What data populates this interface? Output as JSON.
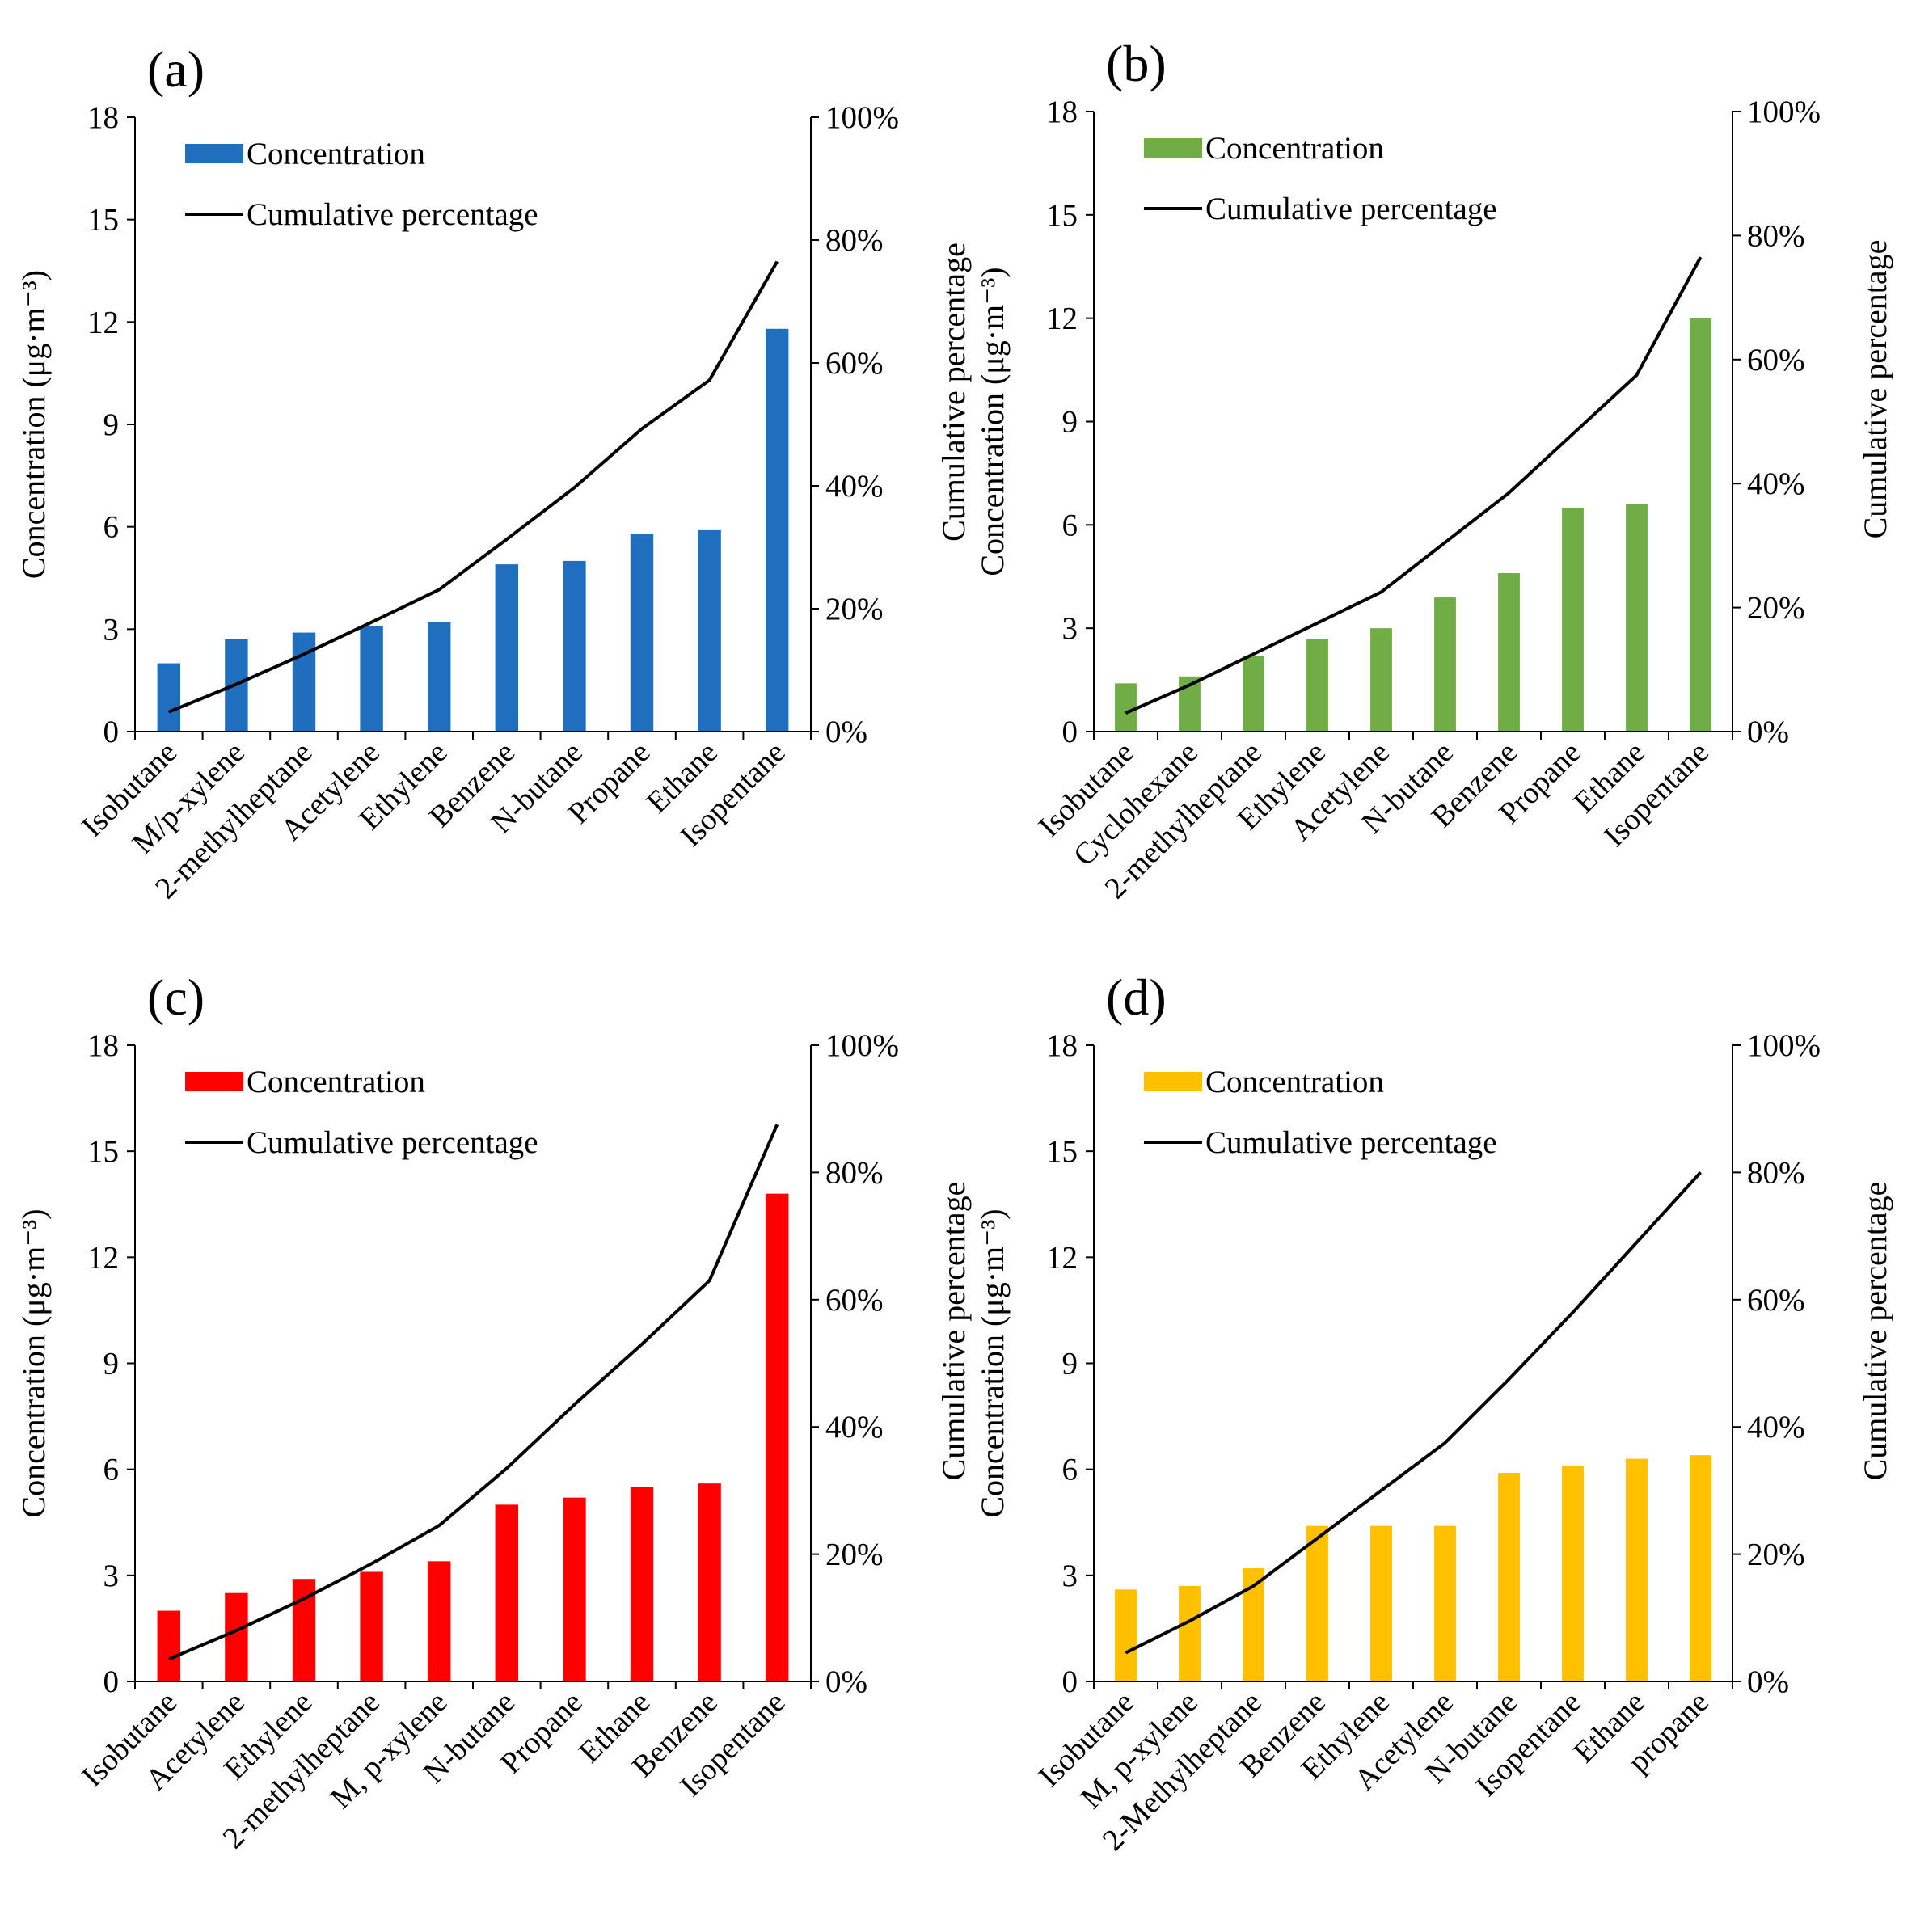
{
  "figure": {
    "charts_count": 4
  },
  "chart_data": [
    {
      "type": "bar",
      "panel_label": "(a)",
      "bar_color": "#1F6FBE",
      "categories": [
        "Isobutane",
        "M/p-xylene",
        "2-methylheptane",
        "Acetylene",
        "Ethylene",
        "Benzene",
        "N-butane",
        "Propane",
        "Ethane",
        "Isopentane"
      ],
      "series": [
        {
          "name": "Concentration",
          "axis": "left",
          "kind": "bar",
          "values": [
            2.0,
            2.7,
            2.9,
            3.1,
            3.2,
            4.9,
            5.0,
            5.8,
            5.9,
            11.8
          ]
        },
        {
          "name": "Cumulative percentage",
          "axis": "right",
          "kind": "line",
          "values": [
            3.2,
            7.7,
            12.6,
            17.8,
            23.1,
            31.3,
            39.7,
            49.3,
            57.2,
            76.5
          ]
        }
      ],
      "ylabel": "Concentration (μg·m⁻³)",
      "y2label": "Cumulative percentage",
      "ylim": [
        0,
        18
      ],
      "yticks": [
        "0",
        "3",
        "6",
        "9",
        "12",
        "15",
        "18"
      ],
      "y2lim": [
        0,
        100
      ],
      "y2ticks": [
        "0%",
        "20%",
        "40%",
        "60%",
        "80%",
        "100%"
      ],
      "legend": [
        "Concentration",
        "Cumulative percentage"
      ],
      "legend_position": "top-left",
      "grid": false
    },
    {
      "type": "bar",
      "panel_label": "(b)",
      "bar_color": "#70AD47",
      "categories": [
        "Isobutane",
        "Cyclohexane",
        "2-methylheptane",
        "Ethylene",
        "Acetylene",
        "N-butane",
        "Benzene",
        "Propane",
        "Ethane",
        "Isopentane"
      ],
      "series": [
        {
          "name": "Concentration",
          "axis": "left",
          "kind": "bar",
          "values": [
            1.4,
            1.6,
            2.2,
            2.7,
            3.0,
            3.9,
            4.6,
            6.5,
            6.6,
            12.0
          ]
        },
        {
          "name": "Cumulative percentage",
          "axis": "right",
          "kind": "line",
          "values": [
            3.0,
            7.5,
            12.5,
            17.5,
            22.5,
            30.5,
            38.5,
            48.0,
            57.5,
            76.5
          ]
        }
      ],
      "ylabel": "Concentration (μg·m⁻³)",
      "y2label": "Cumulative percentage",
      "ylim": [
        0,
        18
      ],
      "yticks": [
        "0",
        "3",
        "6",
        "9",
        "12",
        "15",
        "18"
      ],
      "y2lim": [
        0,
        100
      ],
      "y2ticks": [
        "0%",
        "20%",
        "40%",
        "60%",
        "80%",
        "100%"
      ],
      "legend": [
        "Concentration",
        "Cumulative percentage"
      ],
      "legend_position": "top-left",
      "grid": false
    },
    {
      "type": "bar",
      "panel_label": "(c)",
      "bar_color": "#FF0000",
      "categories": [
        "Isobutane",
        "Acetylene",
        "Ethylene",
        "2-methylheptane",
        "M, p-xylene",
        "N-butane",
        "Propane",
        "Ethane",
        "Benzene",
        "Isopentane"
      ],
      "series": [
        {
          "name": "Concentration",
          "axis": "left",
          "kind": "bar",
          "values": [
            2.0,
            2.5,
            2.9,
            3.1,
            3.4,
            5.0,
            5.2,
            5.5,
            5.6,
            13.8
          ]
        },
        {
          "name": "Cumulative percentage",
          "axis": "right",
          "kind": "line",
          "values": [
            3.5,
            8.0,
            13.0,
            18.5,
            24.5,
            33.5,
            43.5,
            53.0,
            63.0,
            87.5
          ]
        }
      ],
      "ylabel": "Concentration (μg·m⁻³)",
      "y2label": "Cumulative percentage",
      "ylim": [
        0,
        18
      ],
      "yticks": [
        "0",
        "3",
        "6",
        "9",
        "12",
        "15",
        "18"
      ],
      "y2lim": [
        0,
        100
      ],
      "y2ticks": [
        "0%",
        "20%",
        "40%",
        "60%",
        "80%",
        "100%"
      ],
      "legend": [
        "Concentration",
        "Cumulative percentage"
      ],
      "legend_position": "top-left",
      "grid": false
    },
    {
      "type": "bar",
      "panel_label": "(d)",
      "bar_color": "#FFC000",
      "categories": [
        "Isobutane",
        "M, p-xylene",
        "2-Methylheptane",
        "Benzene",
        "Ethylene",
        "Acetylene",
        "N-butane",
        "Isopentane",
        "Ethane",
        "propane"
      ],
      "series": [
        {
          "name": "Concentration",
          "axis": "left",
          "kind": "bar",
          "values": [
            2.6,
            2.7,
            3.2,
            4.4,
            4.4,
            4.4,
            5.9,
            6.1,
            6.3,
            6.4
          ]
        },
        {
          "name": "Cumulative percentage",
          "axis": "right",
          "kind": "line",
          "values": [
            4.5,
            9.5,
            15.0,
            22.5,
            30.0,
            37.5,
            47.5,
            58.0,
            69.0,
            80.0
          ]
        }
      ],
      "ylabel": "Concentration (μg·m⁻³)",
      "y2label": "Cumulative percentage",
      "ylim": [
        0,
        18
      ],
      "yticks": [
        "0",
        "3",
        "6",
        "9",
        "12",
        "15",
        "18"
      ],
      "y2lim": [
        0,
        100
      ],
      "y2ticks": [
        "0%",
        "20%",
        "40%",
        "60%",
        "80%",
        "100%"
      ],
      "legend": [
        "Concentration",
        "Cumulative percentage"
      ],
      "legend_position": "top-left",
      "grid": false
    }
  ]
}
